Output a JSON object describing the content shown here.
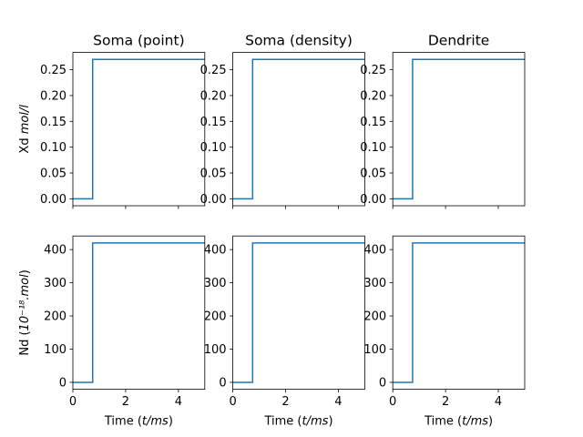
{
  "chart_data": [
    {
      "type": "line",
      "title": "Soma (point)",
      "ylabel_text": "Xd ",
      "ylabel_unit": "mol/l",
      "xlabel_text": "",
      "xlabel_unit": "",
      "xlim": [
        0,
        5
      ],
      "ylim": [
        -0.0135,
        0.2835
      ],
      "xticks": [
        0,
        2,
        4
      ],
      "xtick_labels": [],
      "yticks": [
        0.0,
        0.05,
        0.1,
        0.15,
        0.2,
        0.25
      ],
      "ytick_labels": [
        "0.00",
        "0.05",
        "0.10",
        "0.15",
        "0.20",
        "0.25"
      ],
      "series": [
        {
          "x": [
            0,
            0.75,
            0.75,
            5
          ],
          "y": [
            0,
            0,
            0.27,
            0.27
          ]
        }
      ]
    },
    {
      "type": "line",
      "title": "Soma (density)",
      "ylabel_text": "",
      "ylabel_unit": "",
      "xlabel_text": "",
      "xlabel_unit": "",
      "xlim": [
        0,
        5
      ],
      "ylim": [
        -0.0135,
        0.2835
      ],
      "xticks": [
        0,
        2,
        4
      ],
      "xtick_labels": [],
      "yticks": [
        0.0,
        0.05,
        0.1,
        0.15,
        0.2,
        0.25
      ],
      "ytick_labels": [
        "0.00",
        "0.05",
        "0.10",
        "0.15",
        "0.20",
        "0.25"
      ],
      "series": [
        {
          "x": [
            0,
            0.75,
            0.75,
            5
          ],
          "y": [
            0,
            0,
            0.27,
            0.27
          ]
        }
      ]
    },
    {
      "type": "line",
      "title": "Dendrite",
      "ylabel_text": "",
      "ylabel_unit": "",
      "xlabel_text": "",
      "xlabel_unit": "",
      "xlim": [
        0,
        5
      ],
      "ylim": [
        -0.0135,
        0.2835
      ],
      "xticks": [
        0,
        2,
        4
      ],
      "xtick_labels": [],
      "yticks": [
        0.0,
        0.05,
        0.1,
        0.15,
        0.2,
        0.25
      ],
      "ytick_labels": [
        "0.00",
        "0.05",
        "0.10",
        "0.15",
        "0.20",
        "0.25"
      ],
      "series": [
        {
          "x": [
            0,
            0.75,
            0.75,
            5
          ],
          "y": [
            0,
            0,
            0.27,
            0.27
          ]
        }
      ]
    },
    {
      "type": "line",
      "title": "",
      "ylabel_text": "Nd (",
      "ylabel_unit": "10⁻¹⁸.mol",
      "ylabel_close": ")",
      "xlabel_text": "Time (",
      "xlabel_unit": "t/ms",
      "xlabel_close": ")",
      "xlim": [
        0,
        5
      ],
      "ylim": [
        -21,
        441
      ],
      "xticks": [
        0,
        2,
        4
      ],
      "xtick_labels": [
        "0",
        "2",
        "4"
      ],
      "yticks": [
        0,
        100,
        200,
        300,
        400
      ],
      "ytick_labels": [
        "0",
        "100",
        "200",
        "300",
        "400"
      ],
      "series": [
        {
          "x": [
            0,
            0.75,
            0.75,
            5
          ],
          "y": [
            0,
            0,
            420,
            420
          ]
        }
      ]
    },
    {
      "type": "line",
      "title": "",
      "ylabel_text": "",
      "ylabel_unit": "",
      "xlabel_text": "Time (",
      "xlabel_unit": "t/ms",
      "xlabel_close": ")",
      "xlim": [
        0,
        5
      ],
      "ylim": [
        -21,
        441
      ],
      "xticks": [
        0,
        2,
        4
      ],
      "xtick_labels": [
        "0",
        "2",
        "4"
      ],
      "yticks": [
        0,
        100,
        200,
        300,
        400
      ],
      "ytick_labels": [
        "0",
        "100",
        "200",
        "300",
        "400"
      ],
      "series": [
        {
          "x": [
            0,
            0.75,
            0.75,
            5
          ],
          "y": [
            0,
            0,
            420,
            420
          ]
        }
      ]
    },
    {
      "type": "line",
      "title": "",
      "ylabel_text": "",
      "ylabel_unit": "",
      "xlabel_text": "Time (",
      "xlabel_unit": "t/ms",
      "xlabel_close": ")",
      "xlim": [
        0,
        5
      ],
      "ylim": [
        -21,
        441
      ],
      "xticks": [
        0,
        2,
        4
      ],
      "xtick_labels": [
        "0",
        "2",
        "4"
      ],
      "yticks": [
        0,
        100,
        200,
        300,
        400
      ],
      "ytick_labels": [
        "0",
        "100",
        "200",
        "300",
        "400"
      ],
      "series": [
        {
          "x": [
            0,
            0.75,
            0.75,
            5
          ],
          "y": [
            0,
            0,
            420,
            420
          ]
        }
      ]
    }
  ],
  "colors": {
    "line": "#1f77b4",
    "axes": "#000000"
  }
}
